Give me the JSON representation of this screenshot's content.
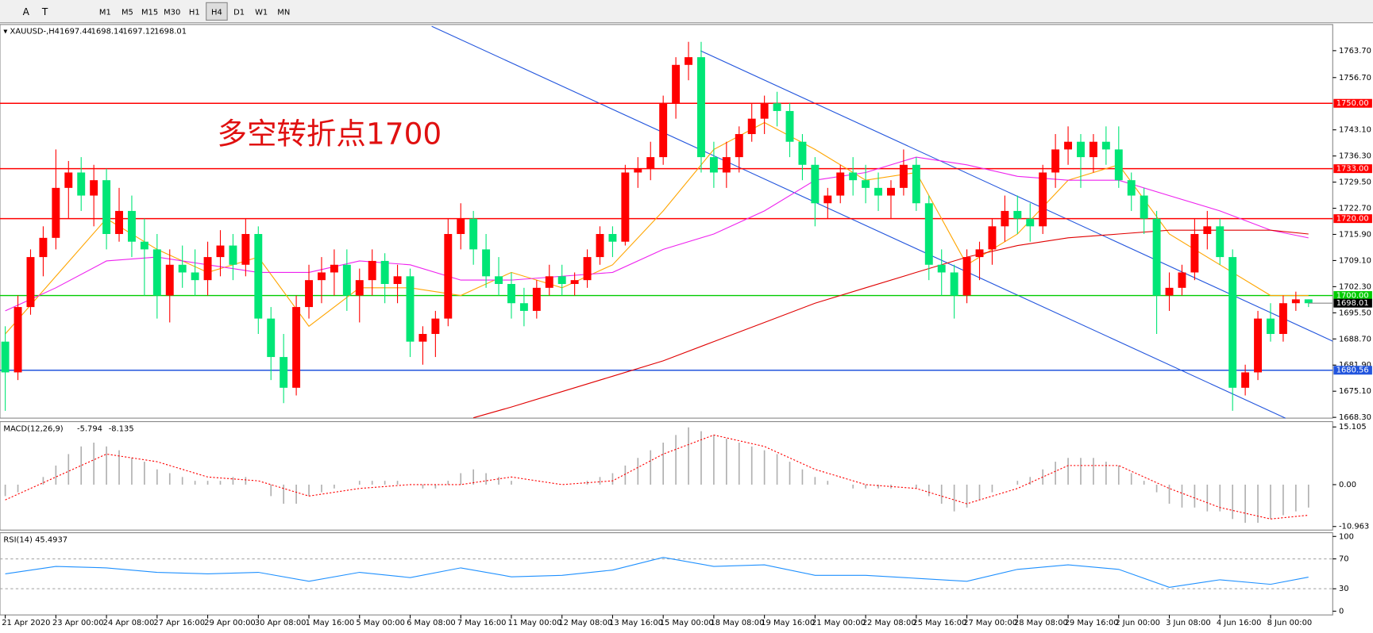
{
  "toolbar": {
    "tools": [
      "A",
      "T"
    ],
    "timeframes": [
      "M1",
      "M5",
      "M15",
      "M30",
      "H1",
      "H4",
      "D1",
      "W1",
      "MN"
    ],
    "active": 5
  },
  "chart_data": [
    {
      "type": "candlestick",
      "title": "XAUUSD-,H4",
      "header_values": [
        1697.44,
        1698.14,
        1697.12,
        1698.01
      ],
      "annotation": "多空转折点1700",
      "categories": [
        "21 Apr 2020",
        null,
        null,
        null,
        "23 Apr 00:00",
        null,
        null,
        null,
        "24 Apr 08:00",
        null,
        null,
        null,
        "27 Apr 16:00",
        null,
        null,
        null,
        "29 Apr 00:00",
        null,
        null,
        null,
        "30 Apr 08:00",
        null,
        null,
        null,
        "1 May 16:00",
        null,
        null,
        null,
        "5 May 00:00",
        null,
        null,
        null,
        "6 May 08:00",
        null,
        null,
        null,
        "7 May 16:00",
        null,
        null,
        null,
        "11 May 00:00",
        null,
        null,
        null,
        "12 May 08:00",
        null,
        null,
        null,
        "13 May 16:00",
        null,
        null,
        null,
        "15 May 00:00",
        null,
        null,
        null,
        "18 May 08:00",
        null,
        null,
        null,
        "19 May 16:00",
        null,
        null,
        null,
        "21 May 00:00",
        null,
        null,
        null,
        "22 May 08:00",
        null,
        null,
        null,
        "25 May 16:00",
        null,
        null,
        null,
        "27 May 00:00",
        null,
        null,
        null,
        "28 May 08:00",
        null,
        null,
        null,
        "29 May 16:00",
        null,
        null,
        null,
        "2 Jun 00:00",
        null,
        null,
        null,
        "3 Jun 08:00",
        null,
        null,
        null,
        "4 Jun 16:00",
        null,
        null,
        null,
        "8 Jun 00:00",
        null,
        null,
        null
      ],
      "values": [
        [
          1688,
          1692,
          1670,
          1680
        ],
        [
          1680,
          1700,
          1678,
          1697
        ],
        [
          1697,
          1712,
          1695,
          1710
        ],
        [
          1710,
          1718,
          1705,
          1715
        ],
        [
          1715,
          1738,
          1712,
          1728
        ],
        [
          1728,
          1735,
          1720,
          1732
        ],
        [
          1732,
          1736,
          1722,
          1726
        ],
        [
          1726,
          1734,
          1718,
          1730
        ],
        [
          1730,
          1733,
          1712,
          1716
        ],
        [
          1716,
          1728,
          1714,
          1722
        ],
        [
          1722,
          1726,
          1710,
          1714
        ],
        [
          1714,
          1720,
          1700,
          1712
        ],
        [
          1712,
          1716,
          1694,
          1700
        ],
        [
          1700,
          1712,
          1693,
          1708
        ],
        [
          1708,
          1713,
          1702,
          1706
        ],
        [
          1706,
          1712,
          1700,
          1704
        ],
        [
          1704,
          1714,
          1700,
          1710
        ],
        [
          1710,
          1717,
          1705,
          1713
        ],
        [
          1713,
          1716,
          1704,
          1708
        ],
        [
          1708,
          1720,
          1705,
          1716
        ],
        [
          1716,
          1718,
          1690,
          1694
        ],
        [
          1694,
          1697,
          1678,
          1684
        ],
        [
          1684,
          1690,
          1672,
          1676
        ],
        [
          1676,
          1700,
          1674,
          1697
        ],
        [
          1697,
          1708,
          1694,
          1704
        ],
        [
          1704,
          1710,
          1698,
          1706
        ],
        [
          1706,
          1712,
          1700,
          1708
        ],
        [
          1708,
          1712,
          1696,
          1700
        ],
        [
          1700,
          1707,
          1693,
          1704
        ],
        [
          1704,
          1712,
          1700,
          1709
        ],
        [
          1709,
          1711,
          1698,
          1703
        ],
        [
          1703,
          1708,
          1698,
          1705
        ],
        [
          1705,
          1707,
          1684,
          1688
        ],
        [
          1688,
          1692,
          1682,
          1690
        ],
        [
          1690,
          1696,
          1684,
          1694
        ],
        [
          1694,
          1720,
          1692,
          1716
        ],
        [
          1716,
          1724,
          1712,
          1720
        ],
        [
          1720,
          1722,
          1708,
          1712
        ],
        [
          1712,
          1716,
          1702,
          1705
        ],
        [
          1705,
          1710,
          1700,
          1703
        ],
        [
          1703,
          1706,
          1694,
          1698
        ],
        [
          1698,
          1702,
          1692,
          1696
        ],
        [
          1696,
          1704,
          1694,
          1702
        ],
        [
          1702,
          1708,
          1700,
          1705
        ],
        [
          1705,
          1708,
          1700,
          1703
        ],
        [
          1703,
          1706,
          1700,
          1704
        ],
        [
          1704,
          1712,
          1702,
          1710
        ],
        [
          1710,
          1718,
          1708,
          1716
        ],
        [
          1716,
          1718,
          1710,
          1714
        ],
        [
          1714,
          1734,
          1713,
          1732
        ],
        [
          1732,
          1736,
          1728,
          1733
        ],
        [
          1733,
          1740,
          1730,
          1736
        ],
        [
          1736,
          1752,
          1734,
          1750
        ],
        [
          1750,
          1762,
          1746,
          1760
        ],
        [
          1760,
          1766,
          1756,
          1762
        ],
        [
          1762,
          1766,
          1732,
          1736
        ],
        [
          1736,
          1740,
          1728,
          1732
        ],
        [
          1732,
          1740,
          1728,
          1736
        ],
        [
          1736,
          1744,
          1732,
          1742
        ],
        [
          1742,
          1750,
          1740,
          1746
        ],
        [
          1746,
          1752,
          1742,
          1750
        ],
        [
          1750,
          1753,
          1744,
          1748
        ],
        [
          1748,
          1750,
          1736,
          1740
        ],
        [
          1740,
          1742,
          1730,
          1734
        ],
        [
          1734,
          1736,
          1718,
          1724
        ],
        [
          1724,
          1728,
          1720,
          1726
        ],
        [
          1726,
          1734,
          1724,
          1732
        ],
        [
          1732,
          1736,
          1726,
          1730
        ],
        [
          1730,
          1734,
          1724,
          1728
        ],
        [
          1728,
          1732,
          1722,
          1726
        ],
        [
          1726,
          1730,
          1720,
          1728
        ],
        [
          1728,
          1738,
          1726,
          1734
        ],
        [
          1734,
          1736,
          1722,
          1724
        ],
        [
          1724,
          1726,
          1704,
          1708
        ],
        [
          1708,
          1712,
          1700,
          1706
        ],
        [
          1706,
          1708,
          1694,
          1700
        ],
        [
          1700,
          1712,
          1698,
          1710
        ],
        [
          1710,
          1714,
          1704,
          1712
        ],
        [
          1712,
          1720,
          1708,
          1718
        ],
        [
          1718,
          1726,
          1714,
          1722
        ],
        [
          1722,
          1726,
          1716,
          1720
        ],
        [
          1720,
          1724,
          1714,
          1718
        ],
        [
          1718,
          1734,
          1716,
          1732
        ],
        [
          1732,
          1742,
          1728,
          1738
        ],
        [
          1738,
          1744,
          1734,
          1740
        ],
        [
          1740,
          1742,
          1728,
          1736
        ],
        [
          1736,
          1742,
          1732,
          1740
        ],
        [
          1740,
          1744,
          1734,
          1738
        ],
        [
          1738,
          1744,
          1728,
          1730
        ],
        [
          1730,
          1732,
          1722,
          1726
        ],
        [
          1726,
          1728,
          1716,
          1720
        ],
        [
          1720,
          1722,
          1690,
          1700
        ],
        [
          1700,
          1706,
          1696,
          1702
        ],
        [
          1702,
          1708,
          1700,
          1706
        ],
        [
          1706,
          1720,
          1704,
          1716
        ],
        [
          1716,
          1722,
          1712,
          1718
        ],
        [
          1718,
          1720,
          1708,
          1710
        ],
        [
          1710,
          1712,
          1670,
          1676
        ],
        [
          1676,
          1682,
          1674,
          1680
        ],
        [
          1680,
          1696,
          1678,
          1694
        ],
        [
          1694,
          1698,
          1688,
          1690
        ],
        [
          1690,
          1700,
          1688,
          1698
        ],
        [
          1698,
          1701,
          1696,
          1699
        ],
        [
          1699,
          1699,
          1697,
          1698
        ]
      ],
      "up_color": "#ff0000",
      "down_color": "#00e676",
      "ylim": [
        1668.1,
        1770.5
      ],
      "yticks": [
        {
          "value": 1763.7,
          "label": "1763.70"
        },
        {
          "value": 1756.7,
          "label": "1756.70"
        },
        {
          "value": 1743.1,
          "label": "1743.10"
        },
        {
          "value": 1736.3,
          "label": "1736.30"
        },
        {
          "value": 1729.5,
          "label": "1729.50"
        },
        {
          "value": 1722.7,
          "label": "1722.70"
        },
        {
          "value": 1715.9,
          "label": "1715.90"
        },
        {
          "value": 1709.1,
          "label": "1709.10"
        },
        {
          "value": 1702.3,
          "label": "1702.30"
        },
        {
          "value": 1695.5,
          "label": "1695.50"
        },
        {
          "value": 1688.7,
          "label": "1688.70"
        },
        {
          "value": 1681.9,
          "label": "1681.90"
        },
        {
          "value": 1675.1,
          "label": "1675.10"
        },
        {
          "value": 1668.3,
          "label": "1668.30"
        }
      ],
      "lines": [
        {
          "color": "#ffa500",
          "x": [
            0,
            4,
            8,
            12,
            16,
            20,
            24,
            28,
            32,
            36,
            40,
            44,
            48,
            52,
            56,
            60,
            64,
            68,
            72,
            76,
            80,
            84,
            88,
            92,
            96,
            100,
            103
          ],
          "values": [
            1690,
            1705,
            1720,
            1712,
            1706,
            1710,
            1692,
            1702,
            1702,
            1700,
            1706,
            1702,
            1708,
            1722,
            1738,
            1745,
            1738,
            1730,
            1732,
            1708,
            1716,
            1730,
            1734,
            1716,
            1708,
            1700,
            1700
          ]
        },
        {
          "color": "#ee22ee",
          "x": [
            0,
            4,
            8,
            12,
            16,
            20,
            24,
            28,
            32,
            36,
            40,
            44,
            48,
            52,
            56,
            60,
            64,
            68,
            72,
            76,
            80,
            84,
            88,
            92,
            96,
            100,
            103
          ],
          "values": [
            1696,
            1702,
            1709,
            1710,
            1708,
            1706,
            1706,
            1709,
            1708,
            1704,
            1704,
            1705,
            1706,
            1712,
            1716,
            1722,
            1730,
            1732,
            1736,
            1734,
            1731,
            1730,
            1730,
            1726,
            1722,
            1717,
            1715
          ]
        },
        {
          "color": "#e00000",
          "x": [
            37,
            40,
            44,
            48,
            52,
            56,
            60,
            64,
            68,
            72,
            76,
            80,
            84,
            88,
            92,
            96,
            100,
            103
          ],
          "values": [
            1668.2,
            1671,
            1675,
            1679,
            1683,
            1688,
            1693,
            1698,
            1702,
            1706,
            1710,
            1713,
            1715,
            1716,
            1717,
            1717,
            1717,
            1716
          ]
        }
      ],
      "hlines": [
        {
          "value": 1750,
          "label": "1750.00",
          "color": "#ff0000"
        },
        {
          "value": 1733,
          "label": "1733.00",
          "color": "#ff0000"
        },
        {
          "value": 1720,
          "label": "1720.00",
          "color": "#ff0000"
        },
        {
          "value": 1700,
          "label": "1700.00",
          "color": "#00cc00"
        },
        {
          "value": 1680.56,
          "label": "1680.56",
          "color": "#2255dd"
        }
      ],
      "last_price": 1698.01
    },
    {
      "type": "bar",
      "title": "MACD(12,26,9)",
      "header_values": [
        -5.794,
        -8.135
      ],
      "values": [
        -3,
        -2,
        0,
        2,
        5,
        8,
        10,
        11,
        10,
        9,
        7,
        6,
        4,
        3,
        2,
        1,
        1,
        1,
        2,
        2,
        0,
        -3,
        -5,
        -5,
        -3,
        -2,
        -1,
        0,
        1,
        1,
        1,
        1,
        0,
        -1,
        -1,
        1,
        3,
        4,
        3,
        2,
        1,
        0,
        0,
        0,
        0,
        0,
        1,
        2,
        3,
        5,
        7,
        9,
        11,
        13,
        15,
        14,
        13,
        12,
        11,
        10,
        9,
        8,
        6,
        4,
        2,
        1,
        0,
        -1,
        -1,
        -1,
        -1,
        0,
        -1,
        -3,
        -5,
        -7,
        -6,
        -4,
        -2,
        0,
        1,
        2,
        4,
        6,
        7,
        7,
        7,
        6,
        5,
        3,
        1,
        -2,
        -5,
        -6,
        -6,
        -7,
        -7,
        -9,
        -10,
        -10,
        -9,
        -8,
        -7,
        -6
      ],
      "color": "#b0b0b0",
      "signal": {
        "color": "#ff0000",
        "x": [
          0,
          4,
          8,
          12,
          16,
          20,
          24,
          28,
          32,
          36,
          40,
          44,
          48,
          52,
          56,
          60,
          64,
          68,
          72,
          76,
          80,
          84,
          88,
          92,
          96,
          100,
          103
        ],
        "values": [
          -4,
          2,
          8,
          6,
          2,
          1,
          -3,
          -1,
          0,
          0,
          2,
          0,
          1,
          8,
          13,
          10,
          4,
          0,
          -1,
          -5,
          -1,
          5,
          5,
          -1,
          -6,
          -9,
          -8
        ]
      },
      "ylim": [
        -11.9,
        16.5
      ],
      "yticks": [
        15.105,
        {
          "value": 0,
          "label": "0.00"
        },
        -10.963
      ]
    },
    {
      "type": "line",
      "title": "RSI(14)",
      "header_values": [
        45.4937
      ],
      "series": [
        {
          "color": "#1e90ff",
          "x": [
            0,
            4,
            8,
            12,
            16,
            20,
            24,
            28,
            32,
            36,
            40,
            44,
            48,
            52,
            56,
            60,
            64,
            68,
            72,
            76,
            80,
            84,
            88,
            92,
            96,
            100,
            103
          ],
          "values": [
            50,
            60,
            58,
            52,
            50,
            52,
            40,
            52,
            45,
            58,
            46,
            48,
            55,
            72,
            60,
            62,
            48,
            48,
            44,
            40,
            56,
            62,
            56,
            32,
            42,
            36,
            45.5
          ]
        }
      ],
      "ylim": [
        -5,
        105
      ],
      "yticks": [
        100,
        70,
        30,
        0
      ],
      "levels": [
        70,
        30
      ]
    }
  ]
}
